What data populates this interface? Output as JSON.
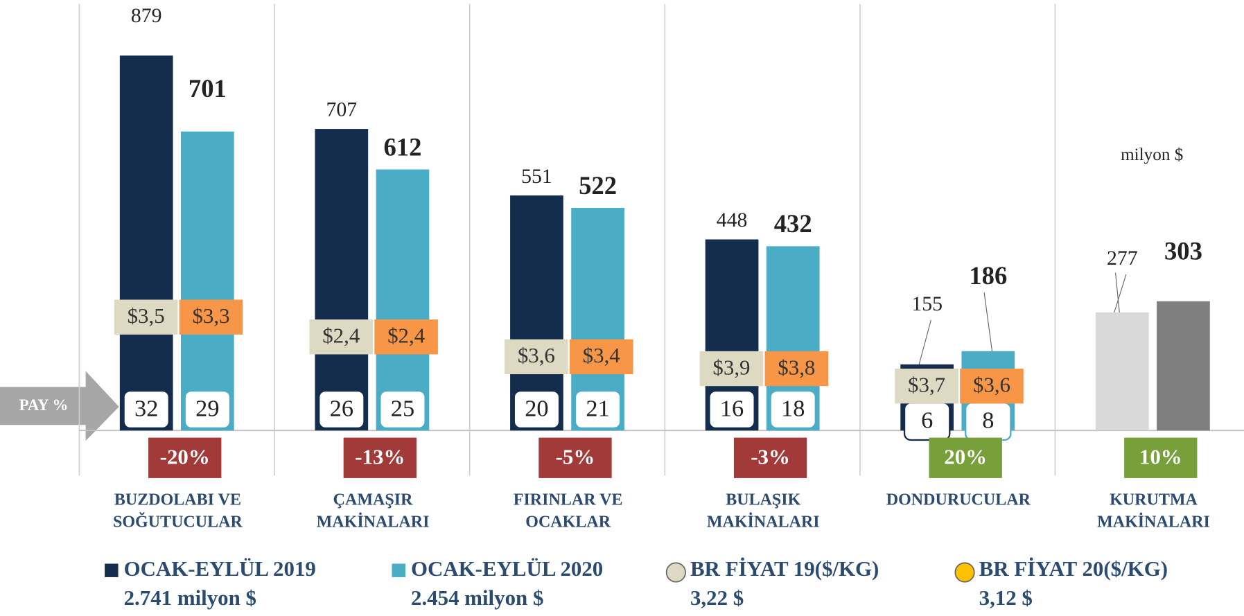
{
  "chart_data": {
    "type": "bar",
    "unit_note": "milyon $",
    "share_label": "PAY %",
    "categories": [
      [
        "BUZDOLABI VE",
        "SOĞUTUCULAR"
      ],
      [
        "ÇAMAŞIR",
        "MAKİNALARI"
      ],
      [
        "FIRINLAR VE",
        "OCAKLAR"
      ],
      [
        "BULAŞIK",
        "MAKİNALARI"
      ],
      [
        "DONDURUCULAR"
      ],
      [
        "KURUTMA",
        "MAKİNALARI"
      ]
    ],
    "series": [
      {
        "name": "OCAK-EYLÜL 2019",
        "total": "2.741 milyon $",
        "color": "#142d4c",
        "colors": [
          "#142d4c",
          "#142d4c",
          "#142d4c",
          "#142d4c",
          "#142d4c",
          "#d9d9d9"
        ],
        "values": [
          879,
          707,
          551,
          448,
          155,
          277
        ],
        "share": [
          32,
          26,
          20,
          16,
          6,
          null
        ]
      },
      {
        "name": "OCAK-EYLÜL 2020",
        "total": "2.454 milyon $",
        "color": "#4bacc6",
        "colors": [
          "#4bacc6",
          "#4bacc6",
          "#4bacc6",
          "#4bacc6",
          "#4bacc6",
          "#7f7f7f"
        ],
        "values": [
          701,
          612,
          522,
          432,
          186,
          303
        ],
        "share": [
          29,
          25,
          21,
          18,
          8,
          null
        ]
      }
    ],
    "prices": [
      {
        "name": "BR FİYAT 19($/KG)",
        "total": "3,22 $",
        "color": "#ddd9c3",
        "values": [
          3.5,
          2.4,
          3.6,
          3.9,
          3.7,
          null
        ],
        "value_labels": [
          "$3,5",
          "$2,4",
          "$3,6",
          "$3,9",
          "$3,7",
          null
        ]
      },
      {
        "name": "BR FİYAT 20($/KG)",
        "total": "3,12 $",
        "color": "#f79646",
        "values": [
          3.3,
          2.4,
          3.4,
          3.8,
          3.6,
          null
        ],
        "value_labels": [
          "$3,3",
          "$2,4",
          "$3,4",
          "$3,8",
          "$3,6",
          null
        ]
      }
    ],
    "change": {
      "values": [
        -20,
        -13,
        -5,
        -3,
        20,
        10
      ],
      "value_labels": [
        "-20%",
        "-13%",
        "-5%",
        "-3%",
        "20%",
        "10%"
      ]
    }
  }
}
